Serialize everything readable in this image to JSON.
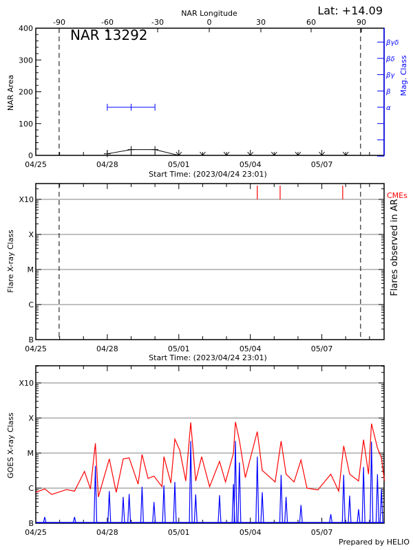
{
  "header": {
    "lat_label": "Lat: +14.09",
    "top_axis_title": "NAR Longitude"
  },
  "chart_data": [
    {
      "panel": "nar",
      "type": "line",
      "title": "NAR 13292",
      "xlabel": "Start Time: (2023/04/24 23:01)",
      "ylabel": "NAR Area",
      "y2label": "Mag. Class",
      "ylim": [
        0,
        400
      ],
      "yticks": [
        "0",
        "100",
        "200",
        "300",
        "400"
      ],
      "xticks": [
        "04/25",
        "04/28",
        "05/01",
        "05/04",
        "05/07"
      ],
      "top_xticks": [
        "-90",
        "-60",
        "-30",
        "0",
        "30",
        "60",
        "90"
      ],
      "limb_lines": [
        "04/25 23:30",
        "05/08 15:00"
      ],
      "area": {
        "x": [
          "04/28 00:00",
          "04/29 00:00",
          "04/30 00:00",
          "05/01 00:00",
          "05/02 00:00",
          "05/03 00:00",
          "05/04 00:00",
          "05/05 00:00",
          "05/06 00:00",
          "05/07 00:00",
          "05/08 00:00"
        ],
        "values": [
          5,
          18,
          18,
          0,
          0,
          0,
          0,
          0,
          0,
          0,
          0
        ]
      },
      "mag_class_ticks": [
        "α",
        "β",
        "βγ",
        "βδ",
        "βγδ"
      ],
      "mag_class": {
        "x": [
          "04/28 00:00",
          "04/29 00:00",
          "04/30 00:00"
        ],
        "values": [
          "α",
          "α",
          "α"
        ]
      },
      "colors": {
        "area": "#000000",
        "mag_class": "#0000ff"
      }
    },
    {
      "panel": "flares",
      "type": "scatter",
      "xlabel": "Start Time: (2023/04/24 23:01)",
      "ylabel": "Flare X-ray Class",
      "y2label": "Flares observed in AR",
      "xticks": [
        "04/25",
        "04/28",
        "05/01",
        "05/04",
        "05/07"
      ],
      "ytick_labels": [
        "B",
        "C",
        "M",
        "X",
        "X10"
      ],
      "limb_lines": [
        "04/25 23:30",
        "05/08 15:00"
      ],
      "flares": [],
      "cmes": {
        "label": "CMEs",
        "x": [
          "05/04 07:00",
          "05/05 06:00",
          "05/07 21:00"
        ]
      },
      "colors": {
        "cme": "#ff0000",
        "grid": "#999999"
      }
    },
    {
      "panel": "goes",
      "type": "line",
      "ylabel": "GOES X-ray Class",
      "xticks": [
        "04/25",
        "04/28",
        "05/01",
        "05/04",
        "05/07"
      ],
      "ytick_labels": [
        "B",
        "C",
        "M",
        "X",
        "X10"
      ],
      "y_unit_scale": "log",
      "series": [
        {
          "color": "#ff0000",
          "x": [
            "04/25 00:00",
            "04/25 09:00",
            "04/25 16:00",
            "04/26 07:00",
            "04/26 15:00",
            "04/27 01:00",
            "04/27 07:00",
            "04/27 12:00",
            "04/27 15:00",
            "04/28 02:00",
            "04/28 09:00",
            "04/28 16:00",
            "04/28 22:00",
            "04/29 07:00",
            "04/29 11:00",
            "04/29 17:00",
            "04/29 23:00",
            "04/30 07:00",
            "04/30 09:00",
            "04/30 16:00",
            "04/30 20:00",
            "05/01 01:00",
            "05/01 07:00",
            "05/01 12:00",
            "05/01 17:00",
            "05/01 23:00",
            "05/02 07:00",
            "05/02 17:00",
            "05/02 23:00",
            "05/03 07:00",
            "05/03 09:00",
            "05/03 13:00",
            "05/03 19:00",
            "05/04 07:00",
            "05/04 12:00",
            "05/05 01:00",
            "05/05 07:00",
            "05/05 12:00",
            "05/05 20:00",
            "05/06 03:00",
            "05/06 09:00",
            "05/06 20:00",
            "05/07 09:00",
            "05/07 17:00",
            "05/07 22:00",
            "05/08 04:00",
            "05/08 13:00",
            "05/08 18:00",
            "05/08 23:00",
            "05/09 02:00",
            "05/09 08:00",
            "05/09 12:00",
            "05/09 15:00"
          ],
          "values": [
            7.6e-07,
            9.5e-07,
            6.6e-07,
            9.1e-07,
            8.2e-07,
            3e-06,
            9.5e-07,
            1.9e-05,
            5.6e-07,
            6.8e-06,
            7.6e-07,
            6.8e-06,
            7.3e-06,
            1.3e-06,
            9.1e-06,
            1.9e-06,
            2.2e-06,
            1.1e-06,
            7.9e-06,
            1.4e-06,
            2.5e-05,
            1.2e-05,
            1.6e-06,
            7.5e-05,
            1.6e-06,
            7.9e-06,
            1.1e-06,
            5.8e-06,
            1.5e-06,
            9.9e-06,
            7.7e-05,
            2.3e-05,
            2e-06,
            4.1e-05,
            3.2e-06,
            1.5e-06,
            2.2e-05,
            2.5e-06,
            1.5e-06,
            6.3e-06,
            1e-06,
            8.9e-07,
            2.5e-06,
            8.2e-07,
            1.6e-05,
            2.5e-06,
            1.6e-06,
            2.4e-05,
            2.5e-06,
            6.9e-05,
            1.4e-05,
            7.3e-06,
            1.6e-06
          ]
        },
        {
          "color": "#0000ff",
          "x": [
            "04/25 09:00",
            "04/26 15:00",
            "04/27 12:00",
            "04/28 02:00",
            "04/28 16:00",
            "04/28 22:00",
            "04/29 11:00",
            "04/29 23:00",
            "04/30 09:00",
            "04/30 20:00",
            "05/01 12:00",
            "05/01 17:00",
            "05/02 17:00",
            "05/03 07:00",
            "05/03 09:00",
            "05/03 13:00",
            "05/04 07:00",
            "05/04 12:00",
            "05/05 07:00",
            "05/05 12:00",
            "05/06 03:00",
            "05/07 09:00",
            "05/07 22:00",
            "05/08 04:00",
            "05/08 13:00",
            "05/08 18:00",
            "05/09 02:00",
            "05/09 08:00",
            "05/09 12:00"
          ],
          "values": [
            1.5e-07,
            1.5e-07,
            4.3e-06,
            8.2e-07,
            5.6e-07,
            6.8e-07,
            1.1e-06,
            4e-07,
            1.2e-06,
            1.5e-06,
            2.2e-05,
            6.6e-07,
            6.3e-07,
            1.3e-06,
            2.2e-05,
            5.4e-06,
            7.9e-06,
            7.6e-07,
            2.4e-06,
            5.6e-07,
            3.3e-07,
            1.8e-07,
            2.4e-06,
            6.1e-07,
            2.5e-07,
            4e-06,
            2.1e-05,
            2.5e-06,
            9.5e-07
          ]
        }
      ],
      "colors": {
        "grid": "#999999"
      }
    }
  ],
  "footer": {
    "credit": "Prepared by HELIO"
  }
}
